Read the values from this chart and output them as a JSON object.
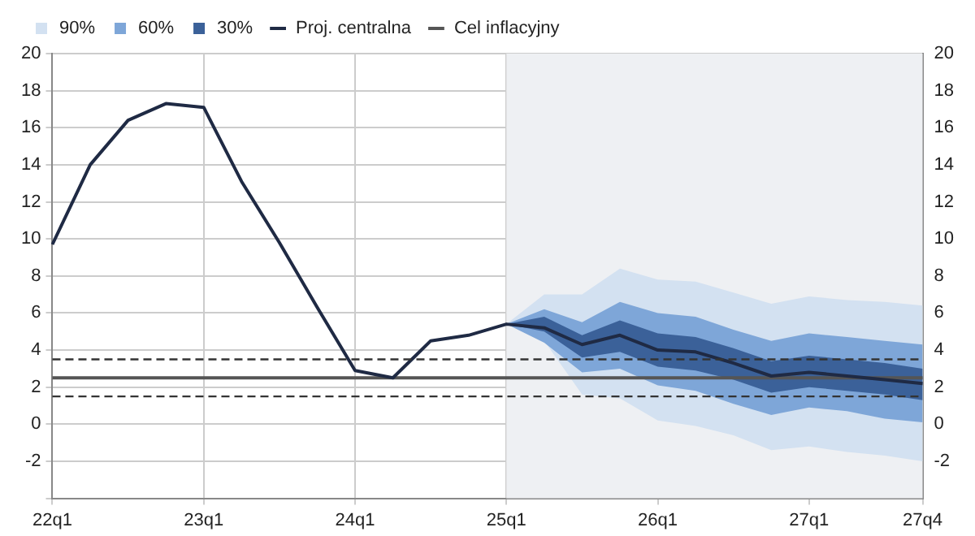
{
  "chart_data": {
    "type": "line",
    "categories": [
      "22q1",
      null,
      null,
      null,
      "23q1",
      null,
      null,
      null,
      "24q1",
      null,
      null,
      null,
      "25q1",
      null,
      null,
      null,
      "26q1",
      null,
      null,
      null,
      "27q1",
      null,
      null,
      "27q4"
    ],
    "series": [
      {
        "name": "90%",
        "type": "area",
        "color": "#d3e1f1",
        "values": [
          null,
          null,
          null,
          null,
          null,
          null,
          null,
          null,
          null,
          null,
          null,
          null,
          null,
          null,
          null,
          null,
          null,
          null,
          null,
          null,
          null,
          null,
          null,
          null
        ],
        "lower": [
          null,
          null,
          null,
          null,
          null,
          null,
          null,
          null,
          null,
          null,
          null,
          null,
          5.4,
          4.5,
          1.6,
          1.4,
          0.2,
          -0.1,
          -0.6,
          -1.4,
          -1.2,
          -1.5,
          -1.7,
          -2.0
        ],
        "upper": [
          null,
          null,
          null,
          null,
          null,
          null,
          null,
          null,
          null,
          null,
          null,
          null,
          5.4,
          7.0,
          7.0,
          8.4,
          7.8,
          7.7,
          7.1,
          6.5,
          6.9,
          6.7,
          6.6,
          6.4
        ]
      },
      {
        "name": "60%",
        "type": "area",
        "color": "#7ea6d8",
        "values": [
          null,
          null,
          null,
          null,
          null,
          null,
          null,
          null,
          null,
          null,
          null,
          null,
          null,
          null,
          null,
          null,
          null,
          null,
          null,
          null,
          null,
          null,
          null,
          null
        ],
        "lower": [
          null,
          null,
          null,
          null,
          null,
          null,
          null,
          null,
          null,
          null,
          null,
          null,
          5.4,
          4.4,
          2.8,
          3.0,
          2.1,
          1.8,
          1.1,
          0.5,
          0.9,
          0.7,
          0.3,
          0.1
        ],
        "upper": [
          null,
          null,
          null,
          null,
          null,
          null,
          null,
          null,
          null,
          null,
          null,
          null,
          5.4,
          6.2,
          5.5,
          6.6,
          6.0,
          5.8,
          5.1,
          4.5,
          4.9,
          4.7,
          4.5,
          4.3
        ]
      },
      {
        "name": "30%",
        "type": "area",
        "color": "#3b6199",
        "values": [
          null,
          null,
          null,
          null,
          null,
          null,
          null,
          null,
          null,
          null,
          null,
          null,
          null,
          null,
          null,
          null,
          null,
          null,
          null,
          null,
          null,
          null,
          null,
          null
        ],
        "lower": [
          null,
          null,
          null,
          null,
          null,
          null,
          null,
          null,
          null,
          null,
          null,
          null,
          5.4,
          5.0,
          3.6,
          3.9,
          3.1,
          2.9,
          2.4,
          1.7,
          2.0,
          1.8,
          1.6,
          1.3
        ],
        "upper": [
          null,
          null,
          null,
          null,
          null,
          null,
          null,
          null,
          null,
          null,
          null,
          null,
          5.4,
          5.8,
          4.8,
          5.6,
          4.9,
          4.7,
          4.1,
          3.4,
          3.7,
          3.5,
          3.3,
          3.0
        ]
      },
      {
        "name": "Proj. centralna",
        "type": "line",
        "color": "#1f2a44",
        "values": [
          9.7,
          14.0,
          16.4,
          17.3,
          17.1,
          13.1,
          9.8,
          6.3,
          2.9,
          2.5,
          4.5,
          4.8,
          5.4,
          5.2,
          4.3,
          4.8,
          4.0,
          3.9,
          3.3,
          2.6,
          2.8,
          2.6,
          2.4,
          2.2
        ]
      },
      {
        "name": "Cel inflacyjny",
        "type": "line",
        "color": "#555555",
        "values": [
          2.5,
          2.5,
          2.5,
          2.5,
          2.5,
          2.5,
          2.5,
          2.5,
          2.5,
          2.5,
          2.5,
          2.5,
          2.5,
          2.5,
          2.5,
          2.5,
          2.5,
          2.5,
          2.5,
          2.5,
          2.5,
          2.5,
          2.5,
          2.5
        ]
      }
    ],
    "ref_lines": [
      {
        "axis": "y",
        "value": 3.5,
        "color": "#333333",
        "line_style": "dashed"
      },
      {
        "axis": "y",
        "value": 1.5,
        "color": "#333333",
        "line_style": "dashed"
      }
    ],
    "bands": [
      {
        "axis": "x",
        "from": "25q1",
        "to": "27q4",
        "color": "#eef0f3"
      }
    ],
    "ylim": [
      -4,
      20
    ],
    "yticks": [
      {
        "value": -4,
        "label": null
      },
      -2,
      0,
      2,
      4,
      6,
      8,
      10,
      12,
      14,
      16,
      18,
      20
    ],
    "y2lim": [
      -4,
      20
    ],
    "y2ticks": [
      {
        "value": -4,
        "label": null
      },
      -2,
      0,
      2,
      4,
      6,
      8,
      10,
      12,
      14,
      16,
      18,
      20
    ],
    "grid": true,
    "legend": "top",
    "marker": "none",
    "line_style": "solid"
  }
}
